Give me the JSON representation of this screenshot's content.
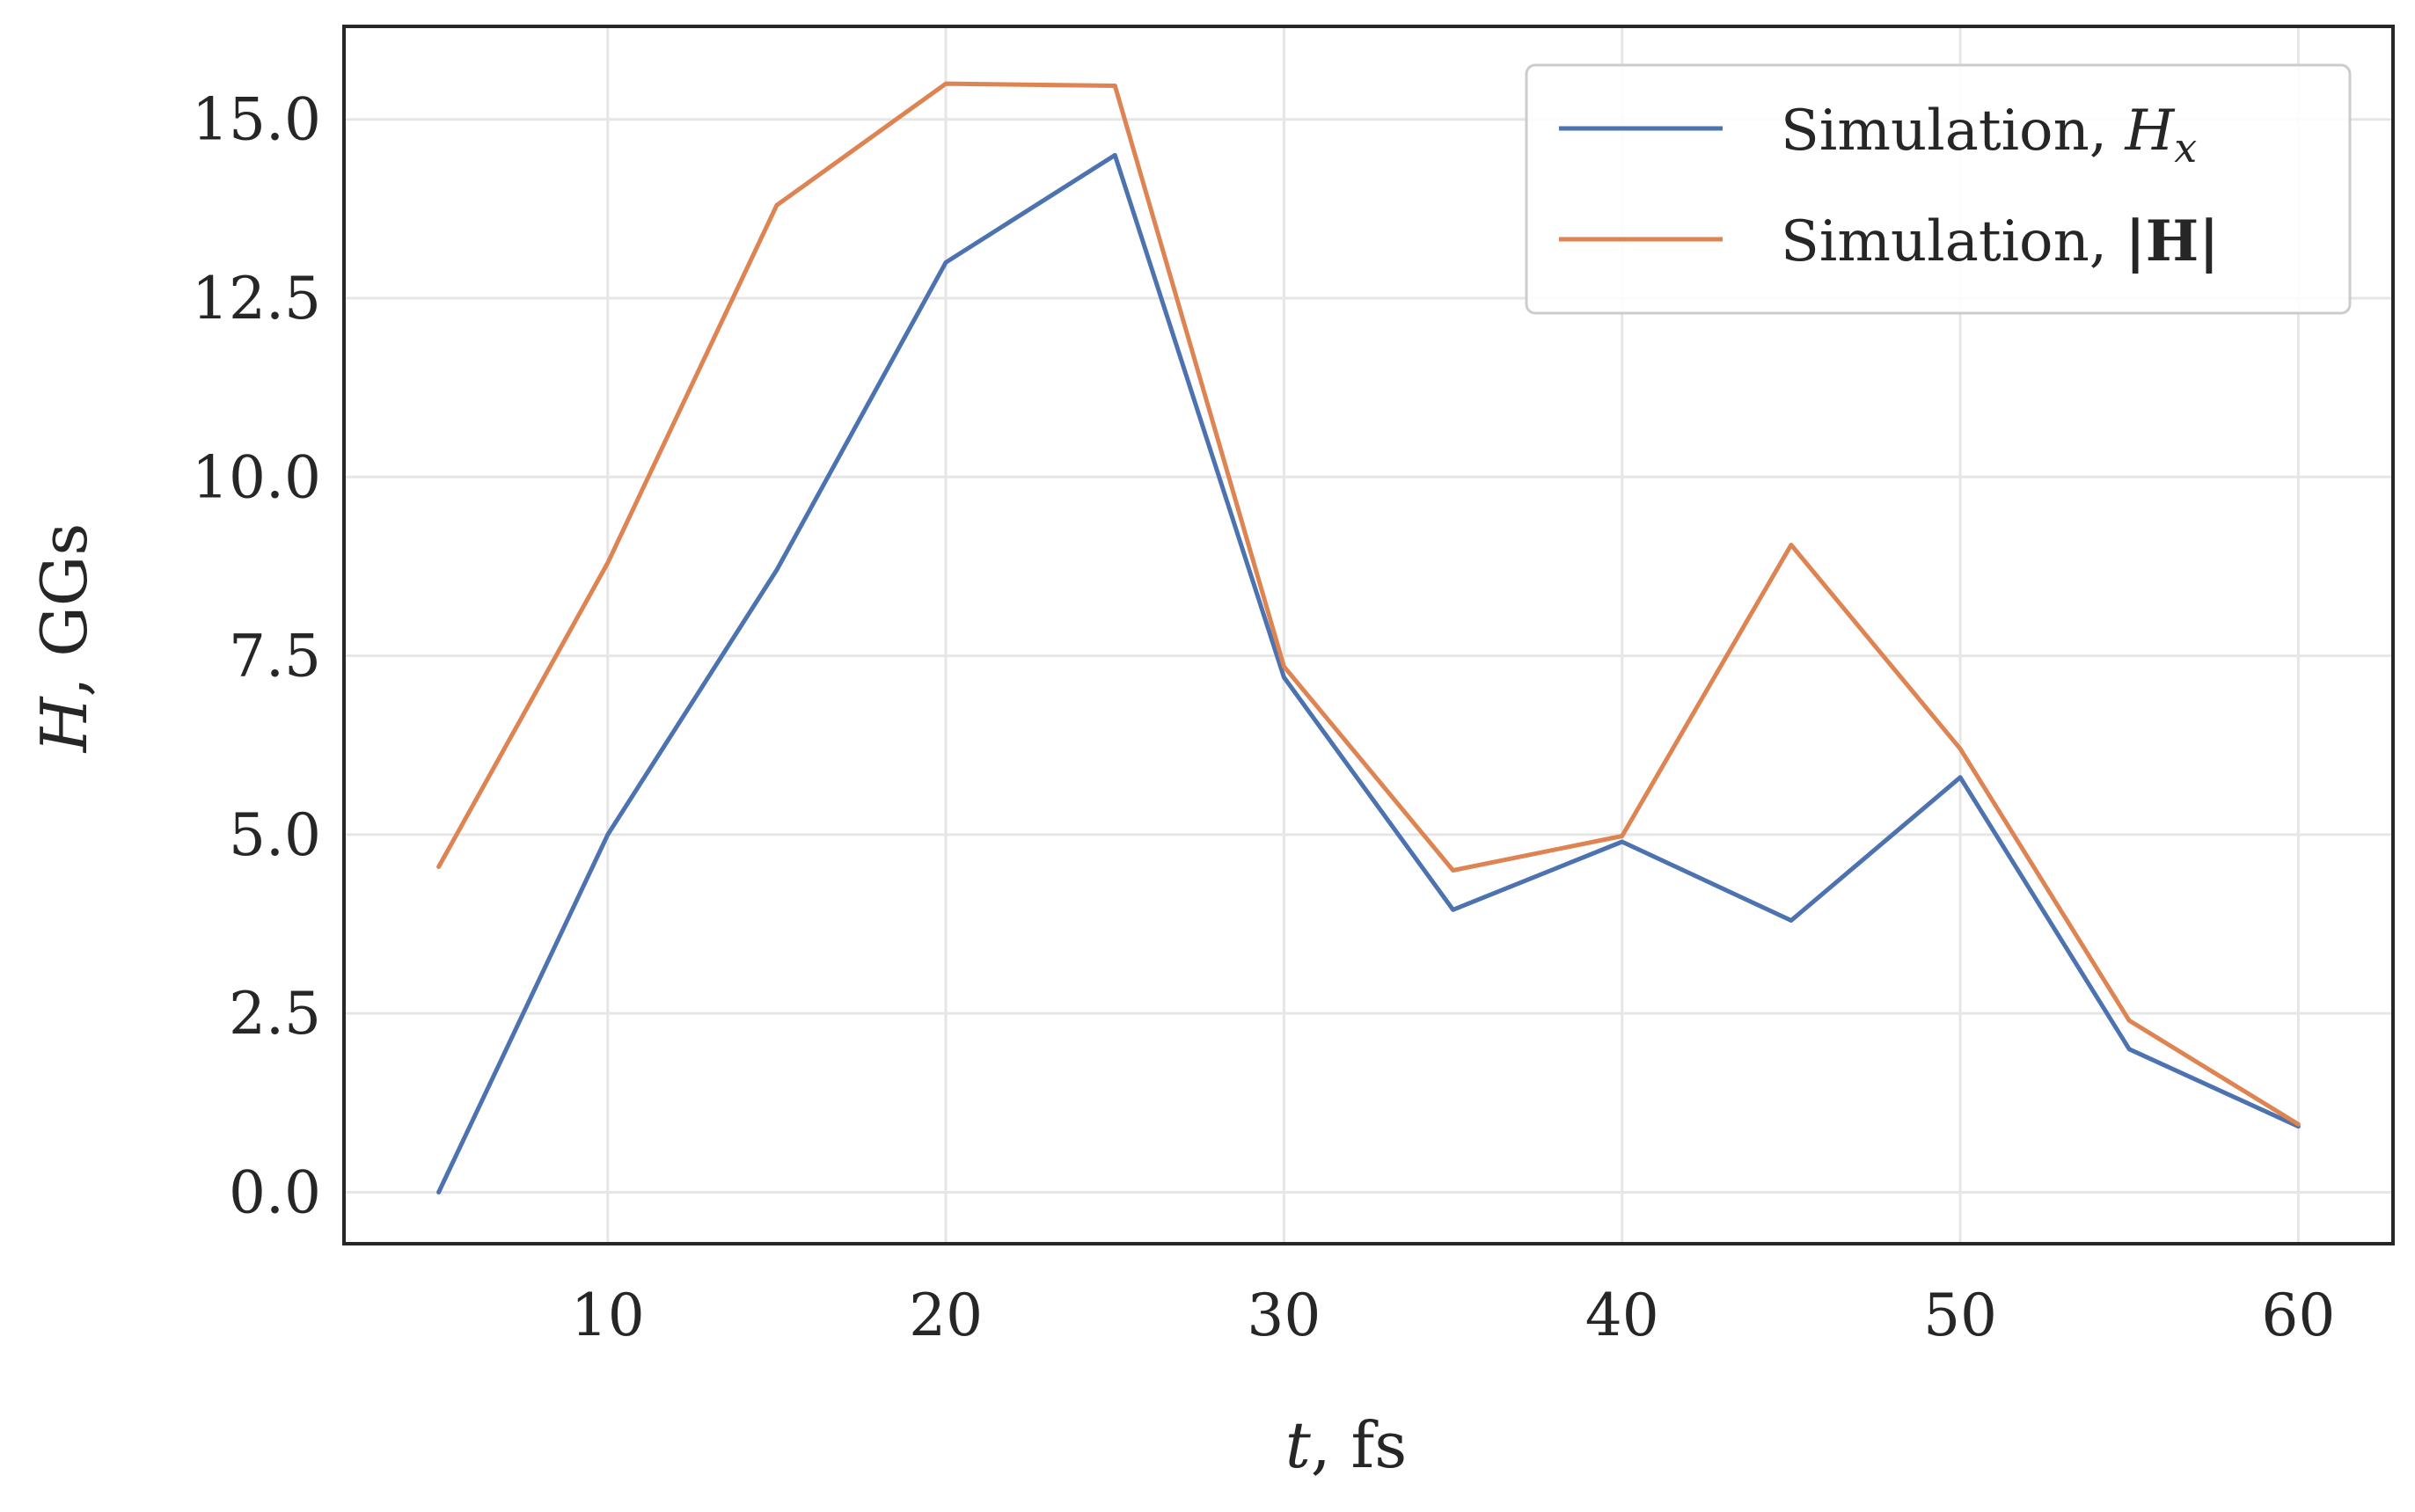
{
  "chart_data": {
    "type": "line",
    "xlabel_var": "t",
    "xlabel_unit": ", fs",
    "ylabel_var": "H",
    "ylabel_unit": ", GGs",
    "xlim": [
      2.2,
      62.8
    ],
    "ylim": [
      -0.72,
      16.3
    ],
    "xticks": [
      10,
      20,
      30,
      40,
      50,
      60
    ],
    "xtick_labels": [
      "10",
      "20",
      "30",
      "40",
      "50",
      "60"
    ],
    "yticks": [
      0,
      2.5,
      5,
      7.5,
      10,
      12.5,
      15
    ],
    "ytick_labels": [
      "0.0",
      "2.5",
      "5.0",
      "7.5",
      "10.0",
      "12.5",
      "15.0"
    ],
    "grid": true,
    "legend_position": "top-right",
    "x": [
      5,
      10,
      15,
      20,
      25,
      30,
      35,
      40,
      45,
      50,
      55,
      60
    ],
    "series": [
      {
        "name_prefix": "Simulation, ",
        "name_math": "H",
        "name_sub": "x",
        "color": "#4c72b0",
        "values": [
          0.0,
          5.0,
          8.7,
          13.0,
          14.5,
          7.2,
          3.95,
          4.9,
          3.8,
          5.8,
          2.0,
          0.92
        ]
      },
      {
        "name_prefix": "Simulation, ",
        "name_math": "|H|",
        "name_sub": "",
        "color": "#dd8452",
        "values": [
          4.55,
          8.8,
          13.8,
          15.5,
          15.47,
          7.35,
          4.5,
          4.98,
          9.05,
          6.2,
          2.4,
          0.95
        ]
      }
    ]
  }
}
